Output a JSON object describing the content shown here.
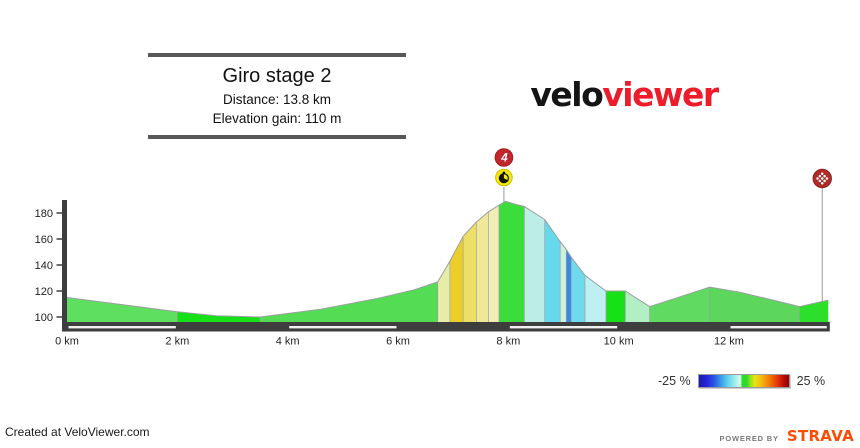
{
  "header": {
    "title": "Giro stage 2",
    "distance": "Distance: 13.8 km",
    "elevation_gain": "Elevation gain: 110 m"
  },
  "logo": {
    "part1": "velo",
    "part2": "viewer",
    "part1_color": "#141414",
    "part2_color": "#ed1c2b"
  },
  "legend": {
    "min_label": "-25 %",
    "max_label": "25 %",
    "gradient_stops": [
      [
        "#181cb0",
        0
      ],
      [
        "#2222d8",
        8
      ],
      [
        "#2b50e6",
        16
      ],
      [
        "#3a9fe8",
        25
      ],
      [
        "#66d6ec",
        33
      ],
      [
        "#a8f0ea",
        41
      ],
      [
        "#ddfbf2",
        46
      ],
      [
        "#2adc2a",
        48
      ],
      [
        "#2adc2a",
        53
      ],
      [
        "#8fe41e",
        57
      ],
      [
        "#e6e414",
        62
      ],
      [
        "#f0c410",
        68
      ],
      [
        "#f2920c",
        75
      ],
      [
        "#ee5e06",
        82
      ],
      [
        "#dc2a08",
        89
      ],
      [
        "#b00a06",
        95
      ],
      [
        "#8e0404",
        100
      ]
    ]
  },
  "footer": {
    "credit": "Created at VeloViewer.com",
    "powered_by": "POWERED BY",
    "strava": "STRAVA",
    "strava_color": "#fc4c02"
  },
  "chart_data": {
    "type": "area",
    "title": "Giro stage 2",
    "x_unit": "km",
    "y_unit": "m",
    "x_range_km": [
      0,
      13.8
    ],
    "y_ticks_m": [
      100,
      120,
      140,
      160,
      180
    ],
    "x_ticks": [
      {
        "km": 0,
        "label": "0 km"
      },
      {
        "km": 2,
        "label": "2 km"
      },
      {
        "km": 4,
        "label": "4 km"
      },
      {
        "km": 6,
        "label": "6 km"
      },
      {
        "km": 8,
        "label": "8 km"
      },
      {
        "km": 10,
        "label": "10 km"
      },
      {
        "km": 12,
        "label": "12 km"
      }
    ],
    "profile_points_km_m": [
      [
        0,
        115
      ],
      [
        2.0,
        104
      ],
      [
        2.7,
        101
      ],
      [
        3.5,
        100
      ],
      [
        4.6,
        106
      ],
      [
        5.6,
        114
      ],
      [
        6.3,
        121
      ],
      [
        6.72,
        127
      ],
      [
        6.94,
        143
      ],
      [
        7.18,
        162
      ],
      [
        7.42,
        173
      ],
      [
        7.64,
        181
      ],
      [
        7.83,
        186
      ],
      [
        7.95,
        189
      ],
      [
        8.1,
        187
      ],
      [
        8.29,
        185
      ],
      [
        8.66,
        175
      ],
      [
        8.94,
        158
      ],
      [
        9.05,
        152
      ],
      [
        9.14,
        146
      ],
      [
        9.39,
        132
      ],
      [
        9.77,
        120
      ],
      [
        10.12,
        120
      ],
      [
        10.56,
        108
      ],
      [
        11.0,
        114
      ],
      [
        11.65,
        123
      ],
      [
        12.2,
        119
      ],
      [
        12.8,
        113
      ],
      [
        13.28,
        108
      ],
      [
        13.8,
        113
      ]
    ],
    "gradient_segments": [
      {
        "from": 0.0,
        "to": 2.0,
        "color": "#5fdf5f"
      },
      {
        "from": 2.0,
        "to": 3.5,
        "color": "#16e116"
      },
      {
        "from": 3.5,
        "to": 6.72,
        "color": "#55dc55"
      },
      {
        "from": 6.72,
        "to": 6.94,
        "color": "#e7eca8"
      },
      {
        "from": 6.94,
        "to": 7.18,
        "color": "#edce29"
      },
      {
        "from": 7.18,
        "to": 7.42,
        "color": "#eddf66"
      },
      {
        "from": 7.42,
        "to": 7.64,
        "color": "#efe896"
      },
      {
        "from": 7.64,
        "to": 7.83,
        "color": "#f1edb5"
      },
      {
        "from": 7.83,
        "to": 8.29,
        "color": "#3bdd3b"
      },
      {
        "from": 8.29,
        "to": 8.66,
        "color": "#bceee6"
      },
      {
        "from": 8.66,
        "to": 8.94,
        "color": "#66d9ed"
      },
      {
        "from": 8.94,
        "to": 9.05,
        "color": "#c8f2de"
      },
      {
        "from": 9.05,
        "to": 9.14,
        "color": "#3c86e8"
      },
      {
        "from": 9.14,
        "to": 9.39,
        "color": "#6fdaed"
      },
      {
        "from": 9.39,
        "to": 9.77,
        "color": "#beeff2"
      },
      {
        "from": 9.77,
        "to": 10.12,
        "color": "#16e116"
      },
      {
        "from": 10.12,
        "to": 10.56,
        "color": "#b2efc4"
      },
      {
        "from": 10.56,
        "to": 11.65,
        "color": "#60da60"
      },
      {
        "from": 11.65,
        "to": 13.28,
        "color": "#5cd75c"
      },
      {
        "from": 13.28,
        "to": 13.8,
        "color": "#2bdf2b"
      }
    ],
    "axis_stripes_km": [
      [
        0,
        2
      ],
      [
        4,
        6
      ],
      [
        8,
        10
      ],
      [
        12,
        13.8
      ]
    ],
    "markers": {
      "climb": {
        "km": 7.92,
        "category_label": "4",
        "badge_color": "#c1272d",
        "kom_circle_color": "#f4e80d",
        "icon": "stopwatch-icon"
      },
      "finish": {
        "km": 13.69,
        "color": "#ad2b28",
        "icon": "checkered-dots-icon"
      }
    },
    "layout": {
      "axis_color": "#3e3e3e",
      "outline_color": "#9aa0a0",
      "plot_grid": "off"
    }
  }
}
